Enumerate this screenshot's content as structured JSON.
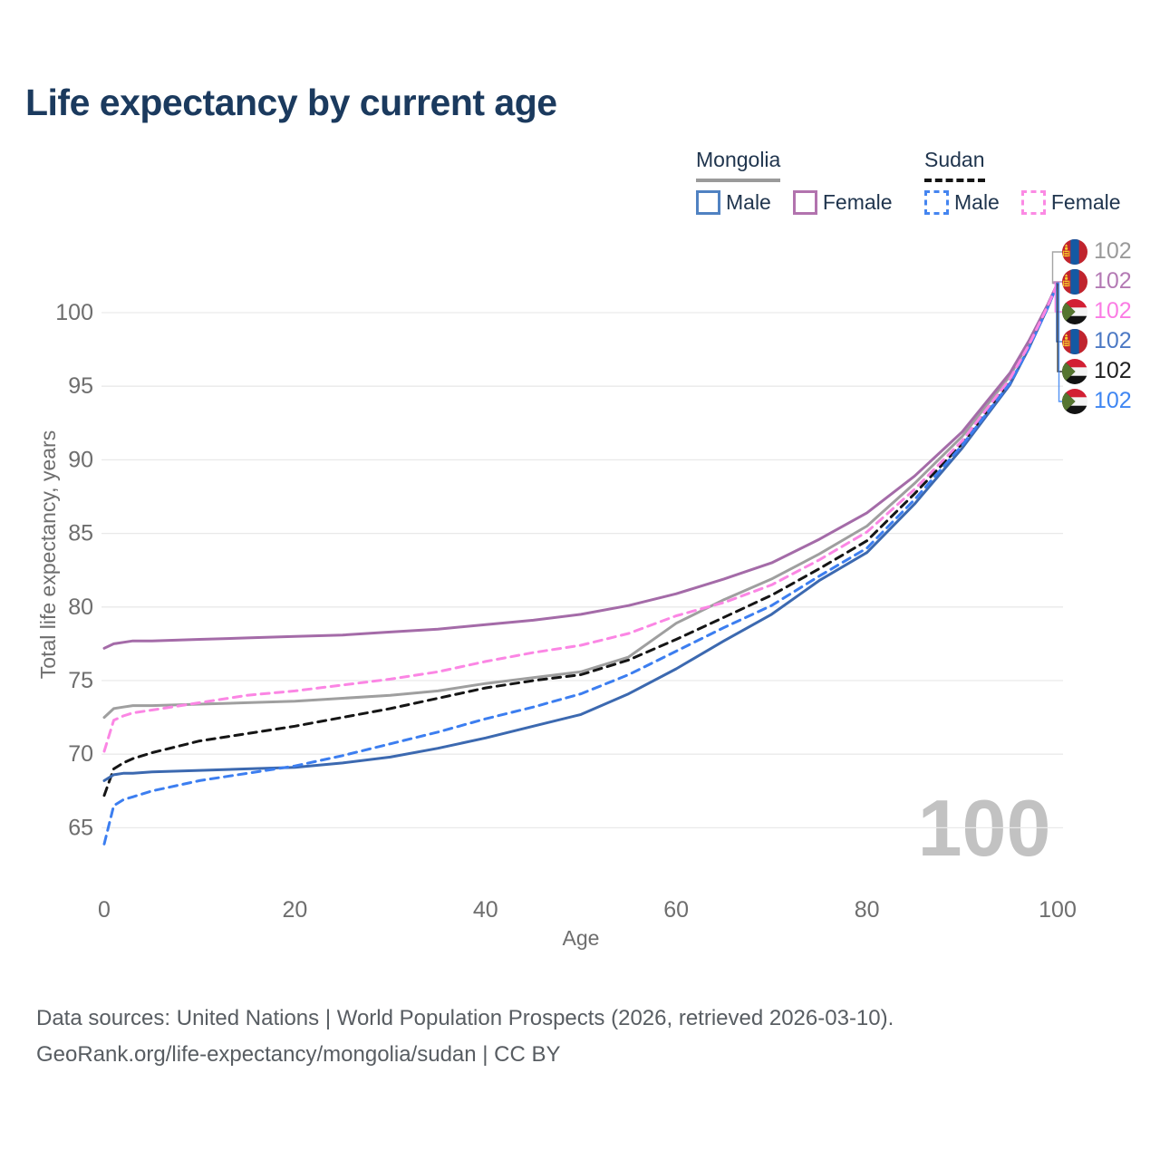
{
  "title": "Life expectancy by current age",
  "watermark": "100",
  "legend": {
    "groups": [
      {
        "country": "Mongolia",
        "line_style": "solid",
        "underline_color": "#9a9a9a",
        "items": [
          {
            "label": "Male",
            "color": "#5082c2",
            "dashed": false
          },
          {
            "label": "Female",
            "color": "#b273ae",
            "dashed": false
          }
        ]
      },
      {
        "country": "Sudan",
        "line_style": "dashed",
        "underline_color": "#141414",
        "items": [
          {
            "label": "Male",
            "color": "#4585f0",
            "dashed": true
          },
          {
            "label": "Female",
            "color": "#fb8ae4",
            "dashed": true
          }
        ]
      }
    ]
  },
  "end_labels": [
    {
      "flag": "mongolia",
      "value": "102",
      "color": "#9a9a9a"
    },
    {
      "flag": "mongolia",
      "value": "102",
      "color": "#b47ab4"
    },
    {
      "flag": "sudan",
      "value": "102",
      "color": "#fb7ce4"
    },
    {
      "flag": "mongolia",
      "value": "102",
      "color": "#4c79c4"
    },
    {
      "flag": "sudan",
      "value": "102",
      "color": "#1f1f1f"
    },
    {
      "flag": "sudan",
      "value": "102",
      "color": "#3f86f2"
    }
  ],
  "footer": {
    "line1": "Data sources: United Nations | World Population Prospects (2026, retrieved 2026-03-10).",
    "line2": "GeoRank.org/life-expectancy/mongolia/sudan | CC BY"
  },
  "colors": {
    "title": "#1b3a5e",
    "axis_text": "#6e6e6e",
    "grid": "#e9e9e9",
    "legend_text": "#20354e",
    "footer_text": "#585d62",
    "watermark": "#c2c2c2"
  },
  "chart_data": {
    "type": "line",
    "title": "Life expectancy by current age",
    "xlabel": "Age",
    "ylabel": "Total life expectancy, years",
    "xticks": [
      0,
      20,
      40,
      60,
      80,
      100
    ],
    "yticks": [
      65,
      70,
      75,
      80,
      85,
      90,
      95,
      100
    ],
    "xlim": [
      0,
      100
    ],
    "ylim": [
      63,
      103
    ],
    "grid": "horizontal",
    "legend_position": "top-right",
    "x": [
      0,
      1,
      2,
      3,
      5,
      10,
      15,
      20,
      25,
      30,
      35,
      40,
      45,
      50,
      55,
      60,
      65,
      70,
      75,
      80,
      85,
      90,
      95,
      97,
      99,
      100
    ],
    "series": [
      {
        "name": "Mongolia — Both sexes",
        "country": "Mongolia",
        "sex": "both",
        "color": "#9f9f9f",
        "dash": "solid",
        "values": [
          72.5,
          73.1,
          73.2,
          73.3,
          73.3,
          73.4,
          73.5,
          73.6,
          73.8,
          74.0,
          74.3,
          74.8,
          75.2,
          75.6,
          76.6,
          78.9,
          80.5,
          81.9,
          83.6,
          85.5,
          88.4,
          91.6,
          95.7,
          98.0,
          100.6,
          102
        ]
      },
      {
        "name": "Sudan — Both sexes",
        "country": "Sudan",
        "sex": "both",
        "color": "#151515",
        "dash": "dashed",
        "values": [
          67.2,
          69.0,
          69.4,
          69.7,
          70.1,
          70.9,
          71.4,
          71.9,
          72.5,
          73.1,
          73.8,
          74.5,
          75.0,
          75.4,
          76.4,
          77.8,
          79.3,
          80.8,
          82.6,
          84.5,
          87.7,
          91.1,
          95.3,
          97.7,
          100.4,
          102
        ]
      },
      {
        "name": "Mongolia — Male",
        "country": "Mongolia",
        "sex": "male",
        "color": "#3c69b0",
        "dash": "solid",
        "values": [
          68.2,
          68.6,
          68.7,
          68.7,
          68.8,
          68.9,
          69.0,
          69.1,
          69.4,
          69.8,
          70.4,
          71.1,
          71.9,
          72.7,
          74.1,
          75.8,
          77.7,
          79.5,
          81.8,
          83.7,
          87.0,
          90.8,
          95.1,
          97.6,
          100.4,
          102
        ]
      },
      {
        "name": "Mongolia — Female",
        "country": "Mongolia",
        "sex": "female",
        "color": "#a46ba8",
        "dash": "solid",
        "values": [
          77.2,
          77.5,
          77.6,
          77.7,
          77.7,
          77.8,
          77.9,
          78.0,
          78.1,
          78.3,
          78.5,
          78.8,
          79.1,
          79.5,
          80.1,
          80.9,
          81.9,
          83.0,
          84.6,
          86.4,
          88.9,
          91.9,
          95.9,
          98.1,
          100.6,
          102
        ]
      },
      {
        "name": "Sudan — Male",
        "country": "Sudan",
        "sex": "male",
        "color": "#3c7ef0",
        "dash": "dashed",
        "values": [
          63.9,
          66.5,
          66.9,
          67.1,
          67.5,
          68.2,
          68.7,
          69.2,
          69.9,
          70.7,
          71.5,
          72.4,
          73.2,
          74.1,
          75.4,
          77.0,
          78.6,
          80.1,
          82.1,
          84.0,
          87.3,
          91.0,
          95.2,
          97.6,
          100.4,
          102
        ]
      },
      {
        "name": "Sudan — Female",
        "country": "Sudan",
        "sex": "female",
        "color": "#fb86e4",
        "dash": "dashed",
        "values": [
          70.2,
          72.3,
          72.6,
          72.8,
          73.0,
          73.5,
          74.0,
          74.3,
          74.7,
          75.1,
          75.6,
          76.3,
          76.9,
          77.4,
          78.2,
          79.4,
          80.3,
          81.5,
          83.2,
          85.1,
          88.0,
          91.3,
          95.5,
          97.8,
          100.5,
          102
        ]
      }
    ]
  }
}
